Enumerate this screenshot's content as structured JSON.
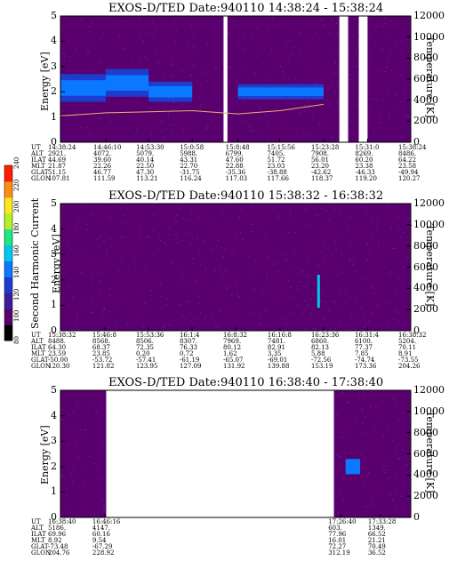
{
  "panels": [
    {
      "title": "EXOS-D/TED   Date:940110  14:38:24 - 15:38:24",
      "ylabel_left": "Energy [eV]",
      "ylabel_right": "Temperature [K]",
      "left_ticks": [
        "0",
        "1",
        "2",
        "3",
        "4",
        "5"
      ],
      "right_ticks": [
        "0",
        "2000",
        "4000",
        "6000",
        "8000",
        "10000",
        "12000"
      ],
      "row_labels": [
        "UT",
        "ALT",
        "ILAT",
        "MLT",
        "GLAT",
        "GLON"
      ],
      "columns": [
        [
          "14:38:24",
          "2921.",
          "44.69",
          "21.87",
          "51.15",
          "107.81"
        ],
        [
          "14:46:10",
          "4072.",
          "39.60",
          "22.26",
          "46.77",
          "111.59"
        ],
        [
          "14:53:30",
          "5079.",
          "40.14",
          "22.50",
          "47.30",
          "113.21"
        ],
        [
          "15:0:58",
          "5988.",
          "43.31",
          "22.70",
          "-31.75",
          "116.24"
        ],
        [
          "15:8:48",
          "6799.",
          "47.60",
          "22.88",
          "-35.36",
          "117.03"
        ],
        [
          "15:15:56",
          "7405.",
          "51.72",
          "23.03",
          "-38.88",
          "117.66"
        ],
        [
          "15:23:28",
          "7908.",
          "56.01",
          "23.20",
          "-42.62",
          "118.37"
        ],
        [
          "15:31:0",
          "8269.",
          "60.20",
          "23.38",
          "-46.33",
          "119.20"
        ],
        [
          "15:38:24",
          "8486.",
          "64.22",
          "23.58",
          "-49.94",
          "120.27"
        ]
      ]
    },
    {
      "title": "EXOS-D/TED   Date:940110  15:38:32 - 16:38:32",
      "ylabel_left": "Energy [eV]",
      "ylabel_right": "Temperature [K]",
      "left_ticks": [
        "0",
        "1",
        "2",
        "3",
        "4",
        "5"
      ],
      "right_ticks": [
        "0",
        "2000",
        "4000",
        "6000",
        "8000",
        "10000",
        "12000"
      ],
      "row_labels": [
        "UT",
        "ALT",
        "ILAT",
        "MLT",
        "GLAT",
        "GLON"
      ],
      "columns": [
        [
          "15:38:32",
          "8488.",
          "64.30",
          "23.59",
          "-50.00",
          "120.30"
        ],
        [
          "15:46:8",
          "8568.",
          "68.37",
          "23.85",
          "-53.72",
          "121.82"
        ],
        [
          "15:53:36",
          "8506.",
          "72.35",
          "0.20",
          "-57.41",
          "123.95"
        ],
        [
          "16:1:4",
          "8307.",
          "76.33",
          "0.72",
          "-61.19",
          "127.09"
        ],
        [
          "16:8:32",
          "7969.",
          "80.12",
          "1.62",
          "-65.07",
          "131.92"
        ],
        [
          "16:16:8",
          "7481.",
          "82.91",
          "3.35",
          "-69.01",
          "139.88"
        ],
        [
          "16:23:36",
          "6860.",
          "82.13",
          "5.88",
          "-72.56",
          "153.19"
        ],
        [
          "16:31:4",
          "6100.",
          "77.37",
          "7.85",
          "-74.74",
          "173.36"
        ],
        [
          "16:38:32",
          "5204.",
          "70.11",
          "8.91",
          "-73.55",
          "204.26"
        ]
      ]
    },
    {
      "title": "EXOS-D/TED   Date:940110  16:38:40 - 17:38:40",
      "ylabel_left": "Energy [eV]",
      "ylabel_right": "Temperature [K]",
      "left_ticks": [
        "0",
        "1",
        "2",
        "3",
        "4",
        "5"
      ],
      "right_ticks": [
        "0",
        "2000",
        "4000",
        "6000",
        "8000",
        "10000",
        "12000"
      ],
      "row_labels": [
        "UT",
        "ALT",
        "ILAT",
        "MLT",
        "GLAT",
        "GLON"
      ],
      "columns": [
        [
          "16:38:40",
          "5186.",
          "69.96",
          "8.92",
          "-73.48",
          "204.76"
        ],
        [
          "16:46:16",
          "4147.",
          "60.16",
          "9.54",
          "-67.29",
          "228.92"
        ],
        [
          "17:26:40",
          "603.",
          "77.96",
          "16.01",
          "72.27",
          "312.19"
        ],
        [
          "17:33:28",
          "1349.",
          "66.52",
          "21.21",
          "70.49",
          "36.52"
        ]
      ]
    }
  ],
  "colorbar": {
    "label": "Second Harmonic Current",
    "ticks": [
      "80",
      "100",
      "120",
      "140",
      "160",
      "180",
      "200",
      "220",
      "240"
    ],
    "colors": [
      "#000000",
      "#5a006e",
      "#3c1e9a",
      "#1e3ccd",
      "#0a78ff",
      "#00c8f0",
      "#1ee682",
      "#b4f028",
      "#ffe61e",
      "#ff8c14",
      "#ff1e00"
    ]
  },
  "chart_data": [
    {
      "type": "heatmap",
      "title": "EXOS-D/TED   Date:940110  14:38:24 - 15:38:24",
      "xlabel": "UT",
      "ylabel": "Energy [eV]",
      "ylabel_right": "Temperature [K]",
      "ylim": [
        0,
        5
      ],
      "ylim_right": [
        0,
        12000
      ],
      "x": [
        "14:38:24",
        "14:46:10",
        "14:53:30",
        "15:0:58",
        "15:8:48",
        "15:15:56",
        "15:23:28",
        "15:31:0",
        "15:38:24"
      ],
      "background_level": 100,
      "bands": [
        {
          "x": [
            "14:38:24",
            "14:46:10"
          ],
          "energy": [
            1.6,
            2.7
          ],
          "level": 140
        },
        {
          "x": [
            "14:46:10",
            "14:53:30"
          ],
          "energy": [
            1.8,
            2.9
          ],
          "level": 150
        },
        {
          "x": [
            "14:53:30",
            "15:0:58"
          ],
          "energy": [
            1.6,
            2.4
          ],
          "level": 140
        },
        {
          "x": [
            "15:8:48",
            "15:23:28"
          ],
          "energy": [
            1.7,
            2.3
          ],
          "level": 140
        }
      ],
      "data_gaps": [
        [
          "15:6:20",
          "15:7:0"
        ],
        [
          "15:26:10",
          "15:27:40"
        ],
        [
          "15:29:30",
          "15:31:0"
        ]
      ],
      "temperature_trace": {
        "x": [
          "14:38:24",
          "14:46:10",
          "14:53:30",
          "15:0:58",
          "15:8:48",
          "15:15:56",
          "15:23:28"
        ],
        "y": [
          2500,
          2800,
          2900,
          3000,
          2700,
          3000,
          3600
        ]
      }
    },
    {
      "type": "heatmap",
      "title": "EXOS-D/TED   Date:940110  15:38:32 - 16:38:32",
      "xlabel": "UT",
      "ylabel": "Energy [eV]",
      "ylabel_right": "Temperature [K]",
      "ylim": [
        0,
        5
      ],
      "ylim_right": [
        0,
        12000
      ],
      "x": [
        "15:38:32",
        "15:46:8",
        "15:53:36",
        "16:1:4",
        "16:8:32",
        "16:16:8",
        "16:23:36",
        "16:31:4",
        "16:38:32"
      ],
      "background_level": 100,
      "features": [
        {
          "x": "16:22:40",
          "energy": [
            0.9,
            2.2
          ],
          "level": 160
        }
      ]
    },
    {
      "type": "heatmap",
      "title": "EXOS-D/TED   Date:940110  16:38:40 - 17:38:40",
      "xlabel": "UT",
      "ylabel": "Energy [eV]",
      "ylabel_right": "Temperature [K]",
      "ylim": [
        0,
        5
      ],
      "ylim_right": [
        0,
        12000
      ],
      "x": [
        "16:38:40",
        "16:46:16",
        "17:26:40",
        "17:33:28"
      ],
      "background_level": 100,
      "data_gaps": [
        [
          "16:46:30",
          "17:25:30"
        ]
      ],
      "features": [
        {
          "x": [
            "17:27:30",
            "17:30:00"
          ],
          "energy": [
            1.7,
            2.3
          ],
          "level": 140
        }
      ]
    }
  ]
}
